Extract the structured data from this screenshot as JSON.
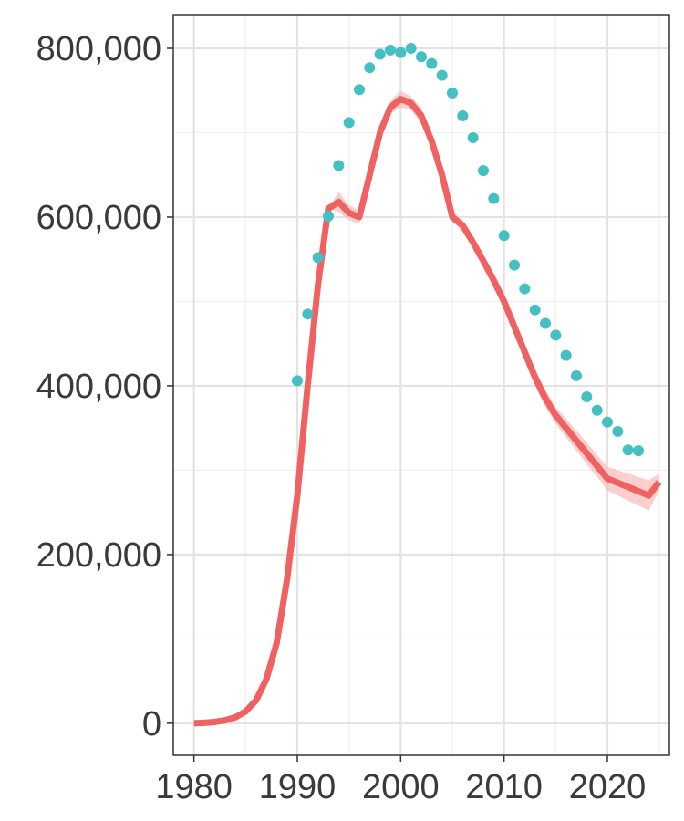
{
  "chart_data": {
    "type": "line",
    "title": "",
    "xlabel": "",
    "ylabel": "",
    "xlim": [
      1978,
      2026
    ],
    "ylim": [
      -38000,
      840000
    ],
    "grid": true,
    "x_ticks": [
      1980,
      1990,
      2000,
      2010,
      2020
    ],
    "x_tick_labels": [
      "1980",
      "1990",
      "2000",
      "2010",
      "2020"
    ],
    "y_ticks": [
      0,
      200000,
      400000,
      600000,
      800000
    ],
    "y_tick_labels": [
      "0",
      "200,000",
      "400,000",
      "600,000",
      "800,000"
    ],
    "series": [
      {
        "kind": "line-with-band",
        "color": "#F06262",
        "band_color": "#F8BFBE",
        "x": [
          1980,
          1981,
          1982,
          1983,
          1984,
          1985,
          1986,
          1987,
          1988,
          1989,
          1990,
          1991,
          1992,
          1993,
          1994,
          1995,
          1996,
          1997,
          1998,
          1999,
          2000,
          2001,
          2002,
          2003,
          2004,
          2005,
          2006,
          2007,
          2008,
          2009,
          2010,
          2011,
          2012,
          2013,
          2014,
          2015,
          2016,
          2017,
          2018,
          2019,
          2020,
          2021,
          2022,
          2023,
          2024,
          2025
        ],
        "y": [
          0,
          500,
          1500,
          3500,
          7000,
          14000,
          27000,
          52000,
          95000,
          170000,
          270000,
          400000,
          520000,
          610000,
          618000,
          605000,
          600000,
          650000,
          700000,
          730000,
          740000,
          735000,
          720000,
          690000,
          650000,
          600000,
          590000,
          570000,
          548000,
          525000,
          500000,
          470000,
          440000,
          410000,
          385000,
          365000,
          350000,
          335000,
          320000,
          305000,
          290000,
          285000,
          280000,
          275000,
          270000,
          286000
        ],
        "lower": [
          0,
          500,
          1500,
          3500,
          7000,
          14000,
          27000,
          52000,
          95000,
          170000,
          270000,
          400000,
          520000,
          610000,
          606000,
          596000,
          592000,
          644000,
          694000,
          723000,
          730000,
          727000,
          711000,
          683000,
          643000,
          594000,
          584000,
          564000,
          542000,
          518000,
          492000,
          461000,
          430000,
          400000,
          375000,
          355000,
          339000,
          323000,
          307000,
          292000,
          276000,
          270000,
          264000,
          258000,
          252000,
          276000
        ],
        "upper": [
          0,
          500,
          1500,
          3500,
          7000,
          14000,
          27000,
          52000,
          95000,
          170000,
          270000,
          400000,
          520000,
          610000,
          630000,
          614000,
          608000,
          656000,
          706000,
          737000,
          750000,
          743000,
          729000,
          697000,
          657000,
          606000,
          596000,
          576000,
          554000,
          532000,
          508000,
          479000,
          450000,
          420000,
          395000,
          375000,
          361000,
          347000,
          333000,
          318000,
          304000,
          300000,
          296000,
          292000,
          288000,
          296000
        ]
      },
      {
        "kind": "points",
        "color": "#45C0C2",
        "x": [
          1990,
          1991,
          1992,
          1993,
          1994,
          1995,
          1996,
          1997,
          1998,
          1999,
          2000,
          2001,
          2002,
          2003,
          2004,
          2005,
          2006,
          2007,
          2008,
          2009,
          2010,
          2011,
          2012,
          2013,
          2014,
          2015,
          2016,
          2017,
          2018,
          2019,
          2020,
          2021,
          2022,
          2023
        ],
        "y": [
          406000,
          485000,
          552000,
          601000,
          661000,
          712000,
          751000,
          777000,
          793000,
          798000,
          795000,
          800000,
          790000,
          782000,
          768000,
          747000,
          720000,
          694000,
          655000,
          622000,
          578000,
          543000,
          515000,
          490000,
          474000,
          460000,
          436000,
          412000,
          387000,
          371000,
          357000,
          346000,
          324000,
          323000
        ]
      }
    ]
  }
}
